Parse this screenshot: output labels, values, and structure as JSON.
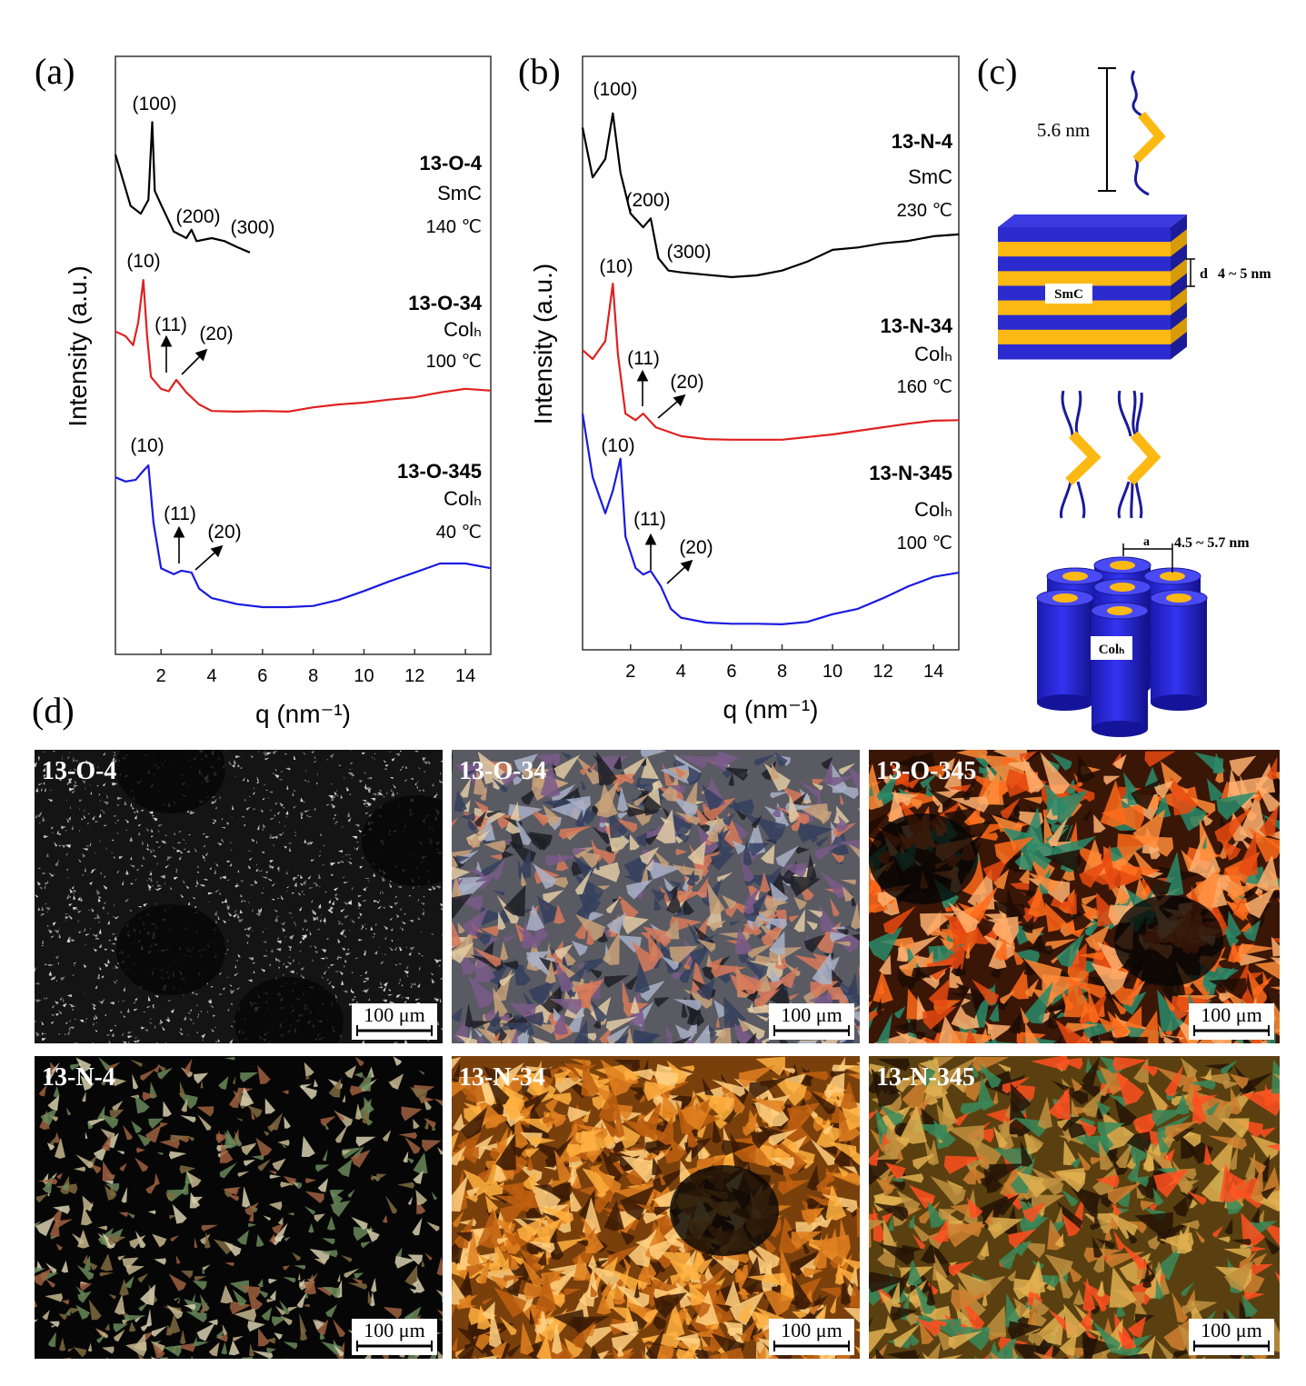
{
  "panel_labels": [
    "(a)",
    "(b)",
    "(c)",
    "(d)"
  ],
  "chart_data": [
    {
      "type": "line",
      "xlabel": "q (nm⁻¹)",
      "ylabel": "Intensity (a.u.)",
      "xlim": [
        0.2,
        15
      ],
      "ylim": [
        0,
        100
      ],
      "xticks": [
        2,
        4,
        6,
        8,
        10,
        12,
        14
      ],
      "series": [
        {
          "name": "13-O-4",
          "phase": "SmC",
          "temperature": "140 ℃",
          "color": "#000000",
          "peaks": [
            "(100)",
            "(200)",
            "(300)"
          ],
          "x": [
            0.2,
            0.8,
            1.2,
            1.5,
            1.65,
            1.75,
            2.0,
            2.5,
            3.0,
            3.2,
            3.4,
            4.0,
            4.5,
            5.0,
            5.5
          ],
          "values": [
            83.6,
            75,
            73.7,
            76,
            89,
            77.5,
            75.2,
            70.7,
            69.6,
            71,
            69.1,
            69.6,
            69.1,
            68.1,
            67.2
          ]
        },
        {
          "name": "13-O-34",
          "phase": "Colₕ",
          "temperature": "100 ℃",
          "color": "#e02020",
          "peaks": [
            "(10)",
            "(11)",
            "(20)"
          ],
          "x": [
            0.2,
            0.6,
            0.9,
            1.1,
            1.3,
            1.45,
            1.6,
            2.0,
            2.3,
            2.6,
            3.0,
            3.5,
            4,
            5,
            6,
            7,
            8,
            9,
            10,
            11,
            12,
            13,
            14,
            15
          ],
          "values": [
            54,
            53.2,
            51.7,
            55.5,
            62.6,
            53.2,
            46.4,
            44.4,
            44,
            45.9,
            43.8,
            41.8,
            40.7,
            40.6,
            40.7,
            40.6,
            41.3,
            41.8,
            42.1,
            42.6,
            43,
            43.8,
            44.4,
            44.1
          ]
        },
        {
          "name": "13-O-345",
          "phase": "Colₕ",
          "temperature": "40 ℃",
          "color": "#1a1ae0",
          "peaks": [
            "(10)",
            "(11)",
            "(20)"
          ],
          "x": [
            0.2,
            0.6,
            1.0,
            1.3,
            1.5,
            1.7,
            2.0,
            2.5,
            2.8,
            3.2,
            3.5,
            4,
            5,
            6,
            7,
            8,
            9,
            10,
            11,
            12,
            13,
            14,
            15
          ],
          "values": [
            29.6,
            28.9,
            29.2,
            30.7,
            31.6,
            22,
            14.4,
            13.4,
            14,
            13.7,
            11,
            9.4,
            8.4,
            7.9,
            7.9,
            8.1,
            9.1,
            10.6,
            12.2,
            13.7,
            15.2,
            15.2,
            14.4
          ]
        }
      ]
    },
    {
      "type": "line",
      "xlabel": "q (nm⁻¹)",
      "ylabel": "Intensity (a.u.)",
      "xlim": [
        0.1,
        15
      ],
      "ylim": [
        0,
        100
      ],
      "xticks": [
        2,
        4,
        6,
        8,
        10,
        12,
        14
      ],
      "series": [
        {
          "name": "13-N-4",
          "phase": "SmC",
          "temperature": "230 ℃",
          "color": "#000000",
          "peaks": [
            "(100)",
            "(200)",
            "(300)"
          ],
          "x": [
            0.1,
            0.5,
            1.0,
            1.3,
            1.6,
            2.0,
            2.5,
            2.8,
            3.1,
            3.5,
            4,
            5,
            6,
            7,
            8,
            9,
            10,
            11,
            12,
            13,
            14,
            15
          ],
          "values": [
            88,
            79.6,
            82.7,
            90.4,
            80.4,
            73.5,
            71.2,
            72.7,
            66,
            63.9,
            63.6,
            63.2,
            62.8,
            63.1,
            63.9,
            65.4,
            67.4,
            67.8,
            68.5,
            68.9,
            69.7,
            70
          ]
        },
        {
          "name": "13-N-34",
          "phase": "Colₕ",
          "temperature": "160 ℃",
          "color": "#e02020",
          "peaks": [
            "(10)",
            "(11)",
            "(20)"
          ],
          "x": [
            0.1,
            0.5,
            1.0,
            1.3,
            1.5,
            1.8,
            2.2,
            2.5,
            3.0,
            4,
            5,
            6,
            8,
            10,
            12,
            13,
            14,
            15
          ],
          "values": [
            50.5,
            49,
            52,
            61.7,
            49.8,
            39.8,
            38.7,
            39.8,
            37.5,
            36,
            35.5,
            35.4,
            35.4,
            36.3,
            37.5,
            38.1,
            38.6,
            38.7
          ]
        },
        {
          "name": "13-N-345",
          "phase": "Colₕ",
          "temperature": "100 ℃",
          "color": "#1a1ae0",
          "peaks": [
            "(10)",
            "(11)",
            "(20)"
          ],
          "x": [
            0.1,
            0.5,
            1.0,
            1.3,
            1.6,
            1.8,
            2.2,
            2.5,
            2.8,
            3.2,
            3.6,
            4,
            5,
            6,
            7,
            8,
            9,
            10,
            11,
            12,
            13,
            14,
            15
          ],
          "values": [
            39.8,
            29.1,
            23,
            26.8,
            32.2,
            19.1,
            13.8,
            12.7,
            13.3,
            10.7,
            6.9,
            5.4,
            4.6,
            4.4,
            4.4,
            4.3,
            4.7,
            6,
            6.9,
            8.7,
            10.7,
            12.3,
            13
          ]
        }
      ]
    }
  ],
  "schematic": {
    "length": "5.6 nm",
    "smc_label": "SmC",
    "d_symbol": "d",
    "d_value": "4 ~ 5 nm",
    "a_symbol": "a",
    "a_value": "4.5 ~ 5.7 nm",
    "colh_label": "Colₕ"
  },
  "micrographs": [
    {
      "label": "13-O-4",
      "scale": "100 μm"
    },
    {
      "label": "13-O-34",
      "scale": "100 μm"
    },
    {
      "label": "13-O-345",
      "scale": "100 μm"
    },
    {
      "label": "13-N-4",
      "scale": "100 μm"
    },
    {
      "label": "13-N-34",
      "scale": "100 μm"
    },
    {
      "label": "13-N-345",
      "scale": "100 μm"
    }
  ]
}
